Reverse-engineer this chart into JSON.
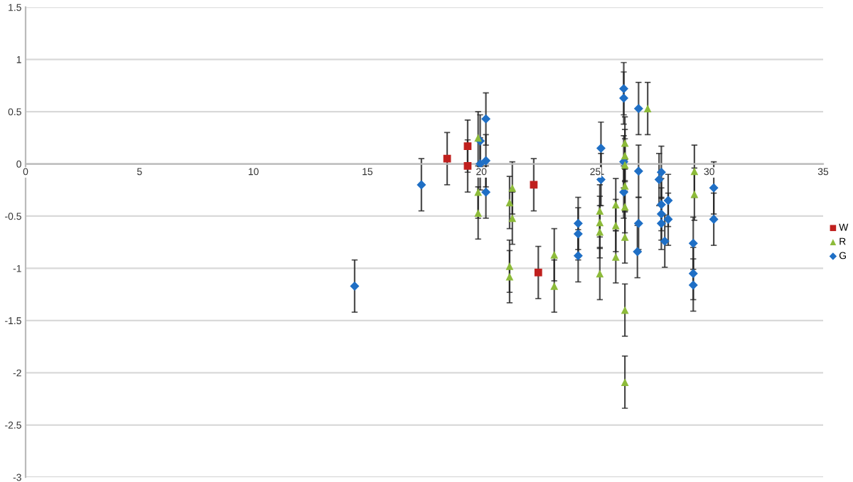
{
  "chart_data": {
    "type": "scatter",
    "xlim": [
      0,
      35
    ],
    "xticks": [
      0,
      5,
      10,
      15,
      20,
      25,
      30,
      35
    ],
    "ylim": [
      -3,
      1.5
    ],
    "yticks": [
      -3,
      -2.5,
      -2,
      -1.5,
      -1,
      -0.5,
      0,
      0.5,
      1,
      1.5
    ],
    "grid": "y",
    "legend": "right",
    "series": [
      {
        "name": "W",
        "color": "#c0201e",
        "marker": "square",
        "x": [
          18.5,
          19.4,
          19.4,
          22.3,
          22.5
        ],
        "values": [
          0.05,
          0.17,
          -0.02,
          -0.2,
          -1.04
        ],
        "errors": [
          0.25,
          0.25,
          0.25,
          0.25,
          0.25
        ]
      },
      {
        "name": "R",
        "color": "#8dbb3a",
        "marker": "triangle",
        "x": [
          19.86,
          19.86,
          19.86,
          21.24,
          21.36,
          21.36,
          21.24,
          21.24,
          23.2,
          23.2,
          25.2,
          25.2,
          25.2,
          25.2,
          25.9,
          25.9,
          25.9,
          26.3,
          26.3,
          26.3,
          26.3,
          26.3,
          26.3,
          26.3,
          26.3,
          27.3,
          29.35,
          29.35
        ],
        "values": [
          0.25,
          -0.27,
          -0.47,
          -0.37,
          -0.23,
          -0.52,
          -0.98,
          -1.08,
          -0.87,
          -1.17,
          -0.45,
          -0.56,
          -0.65,
          -1.05,
          -0.39,
          -0.59,
          -0.89,
          0.2,
          0.08,
          -0.01,
          -0.21,
          -0.41,
          -0.7,
          -1.4,
          -2.09,
          0.53,
          -0.07,
          -0.29
        ],
        "errors": [
          0.25,
          0.25,
          0.25,
          0.25,
          0.25,
          0.25,
          0.25,
          0.25,
          0.25,
          0.25,
          0.25,
          0.25,
          0.25,
          0.25,
          0.25,
          0.25,
          0.25,
          0.25,
          0.25,
          0.25,
          0.25,
          0.25,
          0.25,
          0.25,
          0.25,
          0.25,
          0.25,
          0.25
        ]
      },
      {
        "name": "G",
        "color": "#1f6fc5",
        "marker": "diamond",
        "x": [
          14.44,
          17.37,
          19.95,
          19.95,
          20.2,
          20.2,
          20.2,
          24.25,
          24.25,
          24.25,
          25.25,
          25.25,
          26.25,
          26.25,
          26.25,
          26.25,
          26.9,
          26.9,
          26.9,
          26.85,
          27.8,
          27.9,
          27.9,
          27.9,
          27.9,
          28.05,
          28.2,
          28.2,
          29.3,
          29.3,
          29.3,
          30.2,
          30.2
        ],
        "values": [
          -1.17,
          -0.2,
          0.22,
          0.0,
          0.43,
          0.03,
          -0.27,
          -0.57,
          -0.67,
          -0.88,
          0.15,
          -0.15,
          0.72,
          0.63,
          0.02,
          -0.27,
          0.53,
          -0.07,
          -0.57,
          -0.84,
          -0.15,
          -0.08,
          -0.39,
          -0.48,
          -0.57,
          -0.74,
          -0.35,
          -0.53,
          -0.76,
          -1.05,
          -1.16,
          -0.23,
          -0.53
        ],
        "errors": [
          0.25,
          0.25,
          0.25,
          0.25,
          0.25,
          0.25,
          0.25,
          0.25,
          0.25,
          0.25,
          0.25,
          0.25,
          0.25,
          0.25,
          0.25,
          0.25,
          0.25,
          0.25,
          0.25,
          0.25,
          0.25,
          0.25,
          0.25,
          0.25,
          0.25,
          0.25,
          0.25,
          0.25,
          0.25,
          0.25,
          0.25,
          0.25,
          0.25
        ]
      }
    ]
  }
}
